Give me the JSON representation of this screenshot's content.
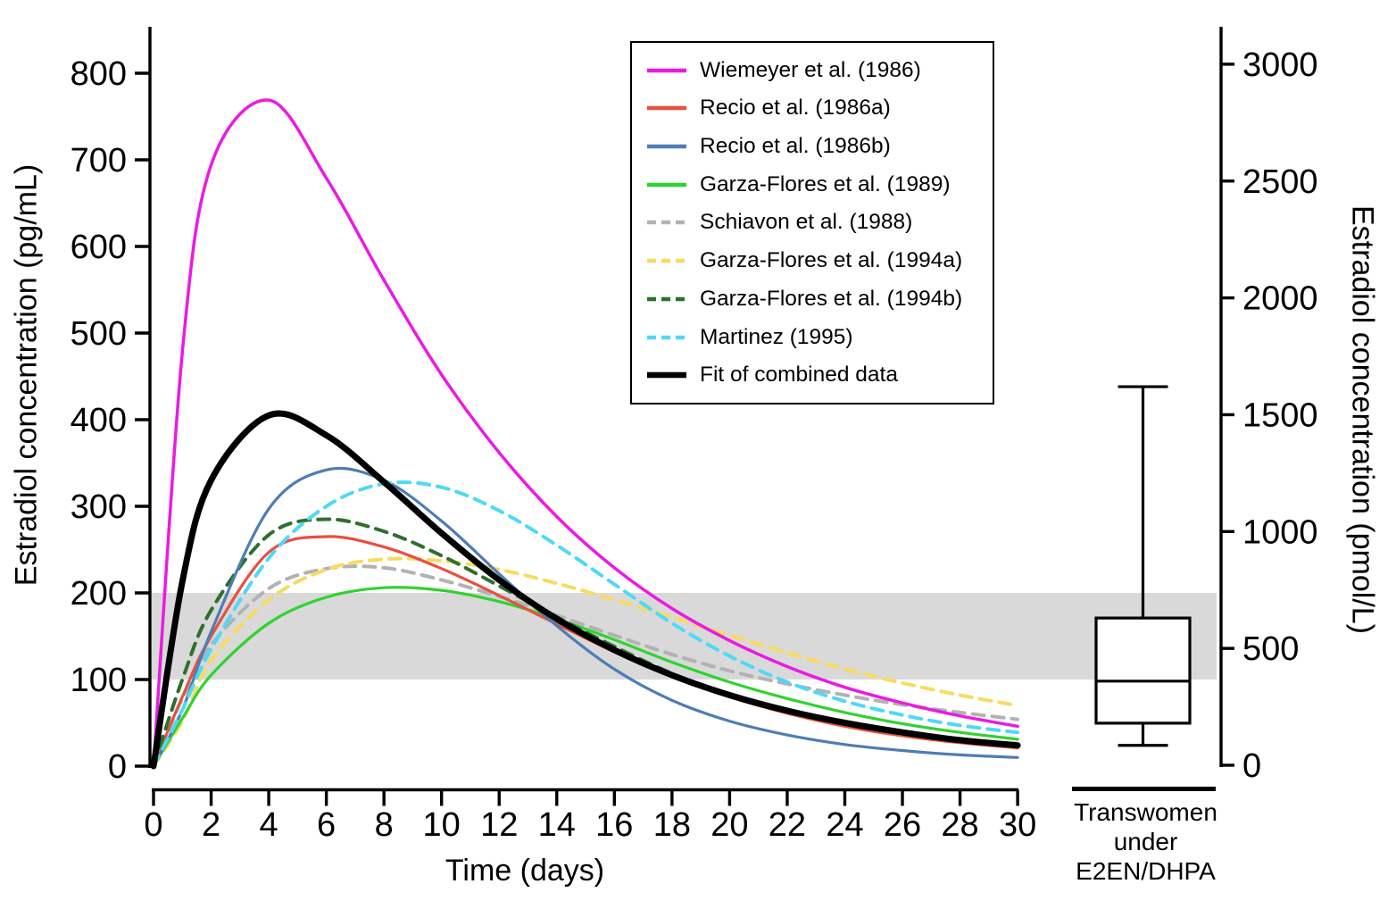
{
  "figure": {
    "kind": "pharmacokinetic line chart with summary box plot",
    "background": "#FFFFFF",
    "axis_color": "#000000"
  },
  "chart_data": {
    "type": "line",
    "xlabel": "Time (days)",
    "ylabel_left": "Estradiol concentration (pg/mL)",
    "ylabel_right": "Estradiol concentration (pmol/L)",
    "xlim_days": [
      0,
      30
    ],
    "ylim_left_pg": [
      0,
      853
    ],
    "ylim_right_pmol": [
      0,
      3160
    ],
    "grid": false,
    "legend_position": "upper center-right, boxed",
    "x_ticks_days": [
      0,
      2,
      4,
      6,
      8,
      10,
      12,
      14,
      16,
      18,
      20,
      22,
      24,
      26,
      28,
      30
    ],
    "left_ticks_pg": [
      0,
      100,
      200,
      300,
      400,
      500,
      600,
      700,
      800
    ],
    "right_ticks_pmol": [
      0,
      500,
      1000,
      1500,
      2000,
      2500,
      3000
    ],
    "reference_band": {
      "lo_pg": 100,
      "hi_pg": 200,
      "color": "#D9D9D9"
    },
    "x_days": [
      0,
      1,
      2,
      4,
      6,
      8,
      10,
      12,
      14,
      16,
      18,
      20,
      22,
      24,
      26,
      28,
      30
    ],
    "series": [
      {
        "name": "Wiemeyer et al. (1986)",
        "color": "#EB1AE3",
        "style": "solid",
        "width": 3.5,
        "values_pg": [
          0,
          478,
          694,
          769,
          679,
          561,
          452,
          362,
          288,
          229,
          182,
          145,
          115,
          91,
          73,
          58,
          46
        ]
      },
      {
        "name": "Recio et al. (1986a)",
        "color": "#E8503F",
        "style": "solid",
        "width": 3.2,
        "values_pg": [
          0,
          80,
          150,
          247,
          265,
          253,
          228,
          197,
          164,
          132,
          104,
          80,
          61,
          46,
          35,
          27,
          21
        ]
      },
      {
        "name": "Recio et al. (1986b)",
        "color": "#4E7DB3",
        "style": "solid",
        "width": 3.2,
        "values_pg": [
          0,
          65,
          155,
          297,
          342,
          330,
          283,
          222,
          162,
          112,
          76,
          52,
          36,
          25,
          18,
          13,
          10
        ]
      },
      {
        "name": "Garza-Flores et al. (1989)",
        "color": "#2FD32F",
        "style": "solid",
        "width": 3.2,
        "values_pg": [
          0,
          55,
          105,
          165,
          195,
          206,
          203,
          190,
          170,
          146,
          120,
          97,
          78,
          62,
          49,
          39,
          31
        ]
      },
      {
        "name": "Schiavon et al. (1988)",
        "color": "#B2B2B2",
        "style": "dashed",
        "width": 4,
        "values_pg": [
          0,
          78,
          140,
          205,
          228,
          229,
          215,
          196,
          174,
          151,
          129,
          110,
          95,
          82,
          71,
          62,
          54
        ]
      },
      {
        "name": "Garza-Flores et al. (1994a)",
        "color": "#F8DB5F",
        "style": "dashed",
        "width": 4,
        "values_pg": [
          0,
          52,
          122,
          192,
          227,
          239,
          237,
          227,
          211,
          192,
          172,
          151,
          131,
          112,
          96,
          82,
          70
        ]
      },
      {
        "name": "Garza-Flores et al. (1994b)",
        "color": "#2E6F2E",
        "style": "dashed",
        "width": 4,
        "values_pg": [
          0,
          100,
          180,
          267,
          285,
          271,
          243,
          208,
          172,
          138,
          107,
          82,
          63,
          49,
          38,
          30,
          24
        ]
      },
      {
        "name": "Martinez (1995)",
        "color": "#4ED9F5",
        "style": "dashed",
        "width": 4,
        "values_pg": [
          0,
          65,
          135,
          240,
          300,
          326,
          322,
          295,
          255,
          210,
          165,
          127,
          97,
          75,
          59,
          47,
          39
        ]
      },
      {
        "name": "Fit of combined data",
        "color": "#000000",
        "style": "solid",
        "width": 7,
        "values_pg": [
          0,
          213,
          330,
          405,
          382,
          328,
          269,
          215,
          170,
          134,
          105,
          82,
          64,
          50,
          39,
          30,
          24
        ]
      }
    ],
    "boxplot": {
      "category_label_lines": [
        "Transwomen",
        "under",
        "E2EN/DHPA"
      ],
      "units": "pmol/L",
      "whisker_low": 85,
      "q1": 180,
      "median": 360,
      "q3": 630,
      "whisker_high": 1620,
      "stroke": "#000000",
      "fill": "#FFFFFF"
    }
  }
}
